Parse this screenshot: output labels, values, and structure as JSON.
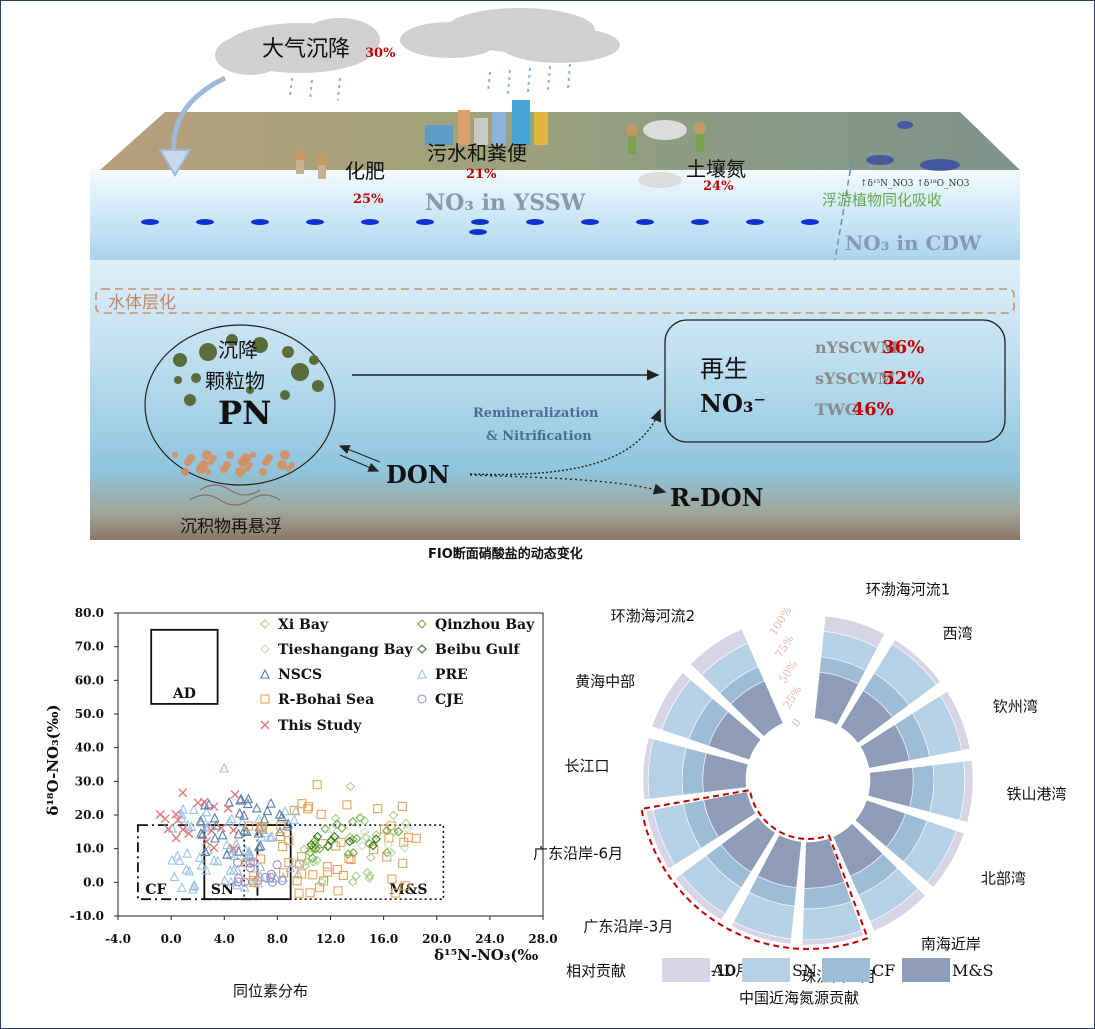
{
  "top": {
    "atm_label": "大气沉降",
    "atm_pct": "30%",
    "fert_label": "化肥",
    "fert_pct": "25%",
    "sewage_label": "污水和粪便",
    "sewage_pct": "21%",
    "soil_label": "土壤氮",
    "soil_pct": "24%",
    "yssw_label": "NO₃ in YSSW",
    "cdw_label": "NO₃ in CDW",
    "phyto_label": "浮游植物同化吸收",
    "isotope_note": "↑δ¹⁵N_NO3 ↑δ¹⁸O_NO3",
    "strat_label": "水体层化",
    "pn_cn_1": "沉降",
    "pn_cn_2": "颗粒物",
    "pn_label": "PN",
    "resusp_label": "沉积物再悬浮",
    "don_label": "DON",
    "rdon_label": "R-DON",
    "remin_1": "Remineralization",
    "remin_2": "& Nitrification",
    "regen_cn": "再生",
    "regen_no3": "NO₃⁻",
    "masses": [
      {
        "name": "nYSCWM",
        "pct": "36%"
      },
      {
        "name": "sYSCWM",
        "pct": "52%"
      },
      {
        "name": "TWC",
        "pct": "46%"
      }
    ],
    "caption": "FIO断面硝酸盐的动态变化"
  },
  "scatter": {
    "caption": "同位素分布",
    "chart_data": {
      "type": "scatter",
      "xlabel": "δ¹⁵N-NO₃(‰",
      "ylabel": "δ¹⁸O-NO₃(‰)",
      "xlim": [
        -4,
        28
      ],
      "ylim": [
        -10,
        80
      ],
      "xticks": [
        "-4.0",
        "0.0",
        "4.0",
        "8.0",
        "12.0",
        "16.0",
        "20.0",
        "24.0",
        "28.0"
      ],
      "yticks": [
        "-10.0",
        "0.0",
        "10.0",
        "20.0",
        "30.0",
        "40.0",
        "50.0",
        "60.0",
        "70.0",
        "80.0"
      ],
      "boxes": [
        {
          "name": "AD",
          "x": [
            -1.5,
            3.5
          ],
          "y": [
            53,
            75
          ]
        },
        {
          "name": "CF",
          "x": [
            -2.5,
            6.5
          ],
          "y": [
            -5,
            17
          ]
        },
        {
          "name": "SN",
          "x": [
            2.5,
            9
          ],
          "y": [
            -5,
            17
          ]
        },
        {
          "name": "M&S",
          "x": [
            5.5,
            20.5
          ],
          "y": [
            -5,
            17
          ]
        }
      ],
      "series": [
        {
          "name": "Xi Bay",
          "marker": "diamond",
          "color": "#a8d08d"
        },
        {
          "name": "Qinzhou Bay",
          "marker": "diamond",
          "color": "#70ad47"
        },
        {
          "name": "Tieshangang Bay",
          "marker": "diamond",
          "color": "#c5e0b4"
        },
        {
          "name": "Beibu Gulf",
          "marker": "diamond",
          "color": "#38761d"
        },
        {
          "name": "NSCS",
          "marker": "triangle",
          "color": "#5b7fa8"
        },
        {
          "name": "PRE",
          "marker": "triangle",
          "color": "#9dc3e6"
        },
        {
          "name": "R-Bohai Sea",
          "marker": "square",
          "color": "#e5a55a"
        },
        {
          "name": "CJE",
          "marker": "circle",
          "color": "#9b8fc7"
        },
        {
          "name": "This Study",
          "marker": "cross",
          "color": "#e07b7b"
        }
      ]
    }
  },
  "polar": {
    "caption": "中国近海氮源贡献",
    "legend_title": "相对贡献",
    "ring_labels": [
      "100%",
      "75%",
      "50%",
      "25%",
      "0"
    ],
    "chart_data": {
      "type": "stacked-radial-bar",
      "categories": [
        "环渤海河流1",
        "西湾",
        "钦州湾",
        "铁山港湾",
        "北部湾",
        "南海近岸",
        "珠江口-5月",
        "珠江口-10月",
        "广东沿岸-3月",
        "广东沿岸-6月",
        "长江口",
        "黄海中部",
        "环渤海河流2"
      ],
      "series": [
        {
          "name": "M&S",
          "color": "#8e9cb8",
          "values": [
            0.45,
            0.42,
            0.4,
            0.42,
            0.4,
            0.42,
            0.45,
            0.45,
            0.45,
            0.43,
            0.42,
            0.42,
            0.45
          ]
        },
        {
          "name": "CF",
          "color": "#9dbdd6",
          "values": [
            0.15,
            0.2,
            0.2,
            0.2,
            0.22,
            0.2,
            0.2,
            0.18,
            0.18,
            0.2,
            0.2,
            0.2,
            0.15
          ]
        },
        {
          "name": "SN",
          "color": "#b6d1e6",
          "values": [
            0.25,
            0.33,
            0.32,
            0.3,
            0.3,
            0.28,
            0.3,
            0.32,
            0.3,
            0.3,
            0.33,
            0.28,
            0.25
          ]
        },
        {
          "name": "AD",
          "color": "#d7d4e6",
          "values": [
            0.15,
            0.05,
            0.08,
            0.08,
            0.08,
            0.1,
            0.05,
            0.05,
            0.07,
            0.07,
            0.05,
            0.1,
            0.15
          ]
        }
      ]
    }
  }
}
